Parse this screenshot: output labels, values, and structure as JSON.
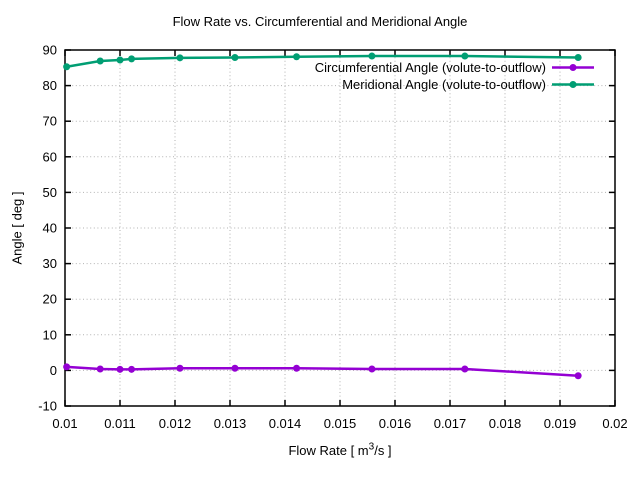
{
  "title": "Flow Rate vs. Circumferential and Meridional Angle",
  "axes": {
    "y_label": "Angle [ deg ]",
    "x_label_prefix": "Flow Rate [ m",
    "x_label_sup": "3",
    "x_label_suffix": "/s ]"
  },
  "style": {
    "grid_color": "#b2b2b2",
    "border_color": "#000000",
    "background": "#ffffff"
  },
  "chart_data": {
    "type": "line",
    "title": "Flow Rate vs. Circumferential and Meridional Angle",
    "xlabel": "Flow Rate [ m³/s ]",
    "ylabel": "Angle [ deg ]",
    "xlim": [
      0.01,
      0.02
    ],
    "ylim": [
      -10,
      90
    ],
    "grid": true,
    "legend_position": "top-right-inside",
    "x_ticks": {
      "values": [
        0.01,
        0.011,
        0.012,
        0.013,
        0.014,
        0.015,
        0.016,
        0.017,
        0.018,
        0.019,
        0.02
      ],
      "labels": [
        "0.01",
        "0.011",
        "0.012",
        "0.013",
        "0.014",
        "0.015",
        "0.016",
        "0.017",
        "0.018",
        "0.019",
        "0.02"
      ]
    },
    "y_ticks": {
      "values": [
        -10,
        0,
        10,
        20,
        30,
        40,
        50,
        60,
        70,
        80,
        90
      ],
      "labels": [
        "-10",
        "0",
        "10",
        "20",
        "30",
        "40",
        "50",
        "60",
        "70",
        "80",
        "90"
      ]
    },
    "x": [
      0.01003,
      0.01064,
      0.011,
      0.01121,
      0.01209,
      0.01309,
      0.01421,
      0.01558,
      0.01727,
      0.01933
    ],
    "series": [
      {
        "name": "Circumferential Angle (volute-to-outflow)",
        "color": "#9400D3",
        "values": [
          1.0,
          0.4,
          0.3,
          0.3,
          0.6,
          0.6,
          0.6,
          0.4,
          0.4,
          -1.5
        ]
      },
      {
        "name": "Meridional Angle (volute-to-outflow)",
        "color": "#009E73",
        "values": [
          85.3,
          86.9,
          87.2,
          87.5,
          87.8,
          87.9,
          88.1,
          88.3,
          88.3,
          87.9
        ]
      }
    ]
  }
}
